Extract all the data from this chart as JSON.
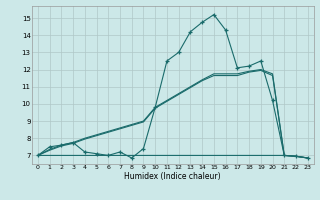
{
  "xlabel": "Humidex (Indice chaleur)",
  "background_color": "#cce8e8",
  "grid_color": "#b0c8c8",
  "line_color": "#1a6b6b",
  "xlim": [
    -0.5,
    23.5
  ],
  "ylim": [
    6.5,
    15.7
  ],
  "xticks": [
    0,
    1,
    2,
    3,
    4,
    5,
    6,
    7,
    8,
    9,
    10,
    11,
    12,
    13,
    14,
    15,
    16,
    17,
    18,
    19,
    20,
    21,
    22,
    23
  ],
  "yticks": [
    7,
    8,
    9,
    10,
    11,
    12,
    13,
    14,
    15
  ],
  "curve1_x": [
    0,
    1,
    2,
    3,
    4,
    5,
    6,
    7,
    8,
    9,
    10,
    11,
    12,
    13,
    14,
    15,
    16,
    17,
    18,
    19,
    20,
    21,
    22,
    23
  ],
  "curve1_y": [
    7.0,
    7.5,
    7.6,
    7.75,
    7.2,
    7.1,
    7.0,
    7.2,
    6.85,
    7.4,
    9.8,
    12.5,
    13.0,
    14.2,
    14.75,
    15.2,
    14.3,
    12.1,
    12.2,
    12.5,
    10.2,
    7.0,
    6.95,
    6.85
  ],
  "curve2_x": [
    0,
    1,
    2,
    3,
    4,
    5,
    6,
    7,
    8,
    9,
    10,
    11,
    12,
    13,
    14,
    15,
    16,
    17,
    18,
    19,
    20,
    21,
    22,
    23
  ],
  "curve2_y": [
    7.0,
    7.0,
    7.0,
    7.0,
    7.0,
    7.0,
    7.0,
    7.0,
    7.0,
    7.0,
    7.0,
    7.0,
    7.0,
    7.0,
    7.0,
    7.0,
    7.0,
    7.0,
    7.0,
    7.0,
    7.0,
    7.0,
    6.95,
    6.85
  ],
  "curve3_x": [
    0,
    1,
    2,
    3,
    4,
    5,
    6,
    7,
    8,
    9,
    10,
    11,
    12,
    13,
    14,
    15,
    16,
    17,
    18,
    19,
    20,
    21,
    22,
    23
  ],
  "curve3_y": [
    7.0,
    7.35,
    7.6,
    7.75,
    8.0,
    8.2,
    8.4,
    8.6,
    8.8,
    9.0,
    9.8,
    10.2,
    10.6,
    11.0,
    11.4,
    11.75,
    11.75,
    11.75,
    11.9,
    12.0,
    11.75,
    7.0,
    6.95,
    6.85
  ],
  "curve4_x": [
    0,
    1,
    2,
    3,
    4,
    5,
    6,
    7,
    8,
    9,
    10,
    11,
    12,
    13,
    14,
    15,
    16,
    17,
    18,
    19,
    20,
    21,
    22,
    23
  ],
  "curve4_y": [
    7.0,
    7.3,
    7.55,
    7.7,
    7.95,
    8.15,
    8.35,
    8.55,
    8.75,
    8.95,
    9.75,
    10.15,
    10.55,
    10.95,
    11.35,
    11.65,
    11.65,
    11.65,
    11.85,
    11.95,
    11.65,
    7.0,
    6.95,
    6.85
  ]
}
